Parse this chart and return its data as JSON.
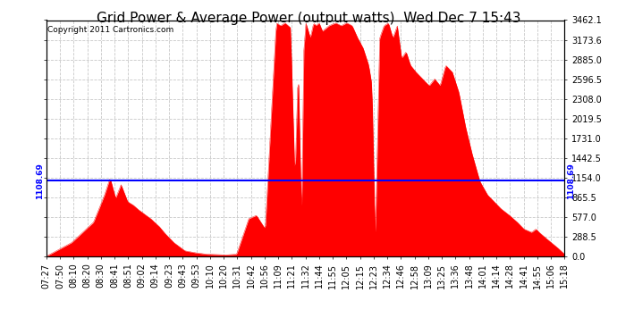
{
  "title": "Grid Power & Average Power (output watts)  Wed Dec 7 15:43",
  "copyright": "Copyright 2011 Cartronics.com",
  "avg_power": 1108.69,
  "ymax": 3462.1,
  "yticks": [
    0.0,
    288.5,
    577.0,
    865.5,
    1154.0,
    1442.5,
    1731.0,
    2019.5,
    2308.0,
    2596.5,
    2885.0,
    3173.6,
    3462.1
  ],
  "xtick_labels": [
    "07:27",
    "07:50",
    "08:10",
    "08:20",
    "08:30",
    "08:41",
    "08:51",
    "09:02",
    "09:14",
    "09:23",
    "09:43",
    "09:53",
    "10:10",
    "10:20",
    "10:31",
    "10:42",
    "10:56",
    "11:09",
    "11:21",
    "11:32",
    "11:44",
    "11:55",
    "12:05",
    "12:15",
    "12:23",
    "12:34",
    "12:46",
    "12:58",
    "13:09",
    "13:25",
    "13:36",
    "13:48",
    "14:01",
    "14:14",
    "14:28",
    "14:41",
    "14:55",
    "15:06",
    "15:18"
  ],
  "fill_color": "#FF0000",
  "line_color": "#FF0000",
  "avg_line_color": "#0000FF",
  "avg_label_color": "#0000FF",
  "background_color": "#FFFFFF",
  "grid_color": "#C8C8C8",
  "title_fontsize": 11,
  "tick_fontsize": 7,
  "copyright_fontsize": 6.5
}
